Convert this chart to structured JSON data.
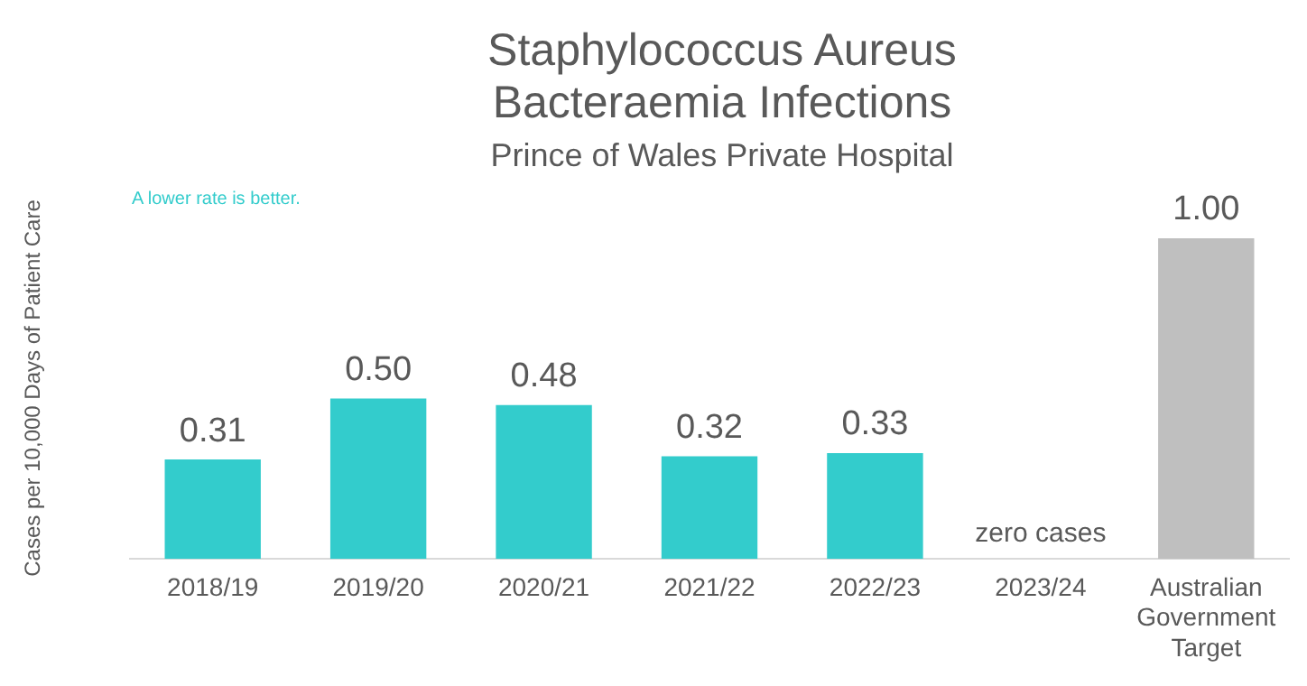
{
  "chart_data": {
    "type": "bar",
    "title": "Staphylococcus Aureus Bacteraemia Infections",
    "subtitle": "Prince of Wales Private Hospital",
    "ylabel": "Cases per 10,000 Days of Patient Care",
    "annotations": [
      "A lower rate is better."
    ],
    "categories": [
      "2018/19",
      "2019/20",
      "2020/21",
      "2021/22",
      "2022/23",
      "2023/24",
      "Australian Government Target"
    ],
    "values": [
      0.31,
      0.5,
      0.48,
      0.32,
      0.33,
      0,
      1.0
    ],
    "colors": [
      "#33cccc",
      "#33cccc",
      "#33cccc",
      "#33cccc",
      "#33cccc",
      "#33cccc",
      "#bfbfbf"
    ],
    "value_labels": [
      "0.31",
      "0.50",
      "0.48",
      "0.32",
      "0.33",
      "zero cases",
      "1.00"
    ],
    "grid": false,
    "legend": false
  }
}
